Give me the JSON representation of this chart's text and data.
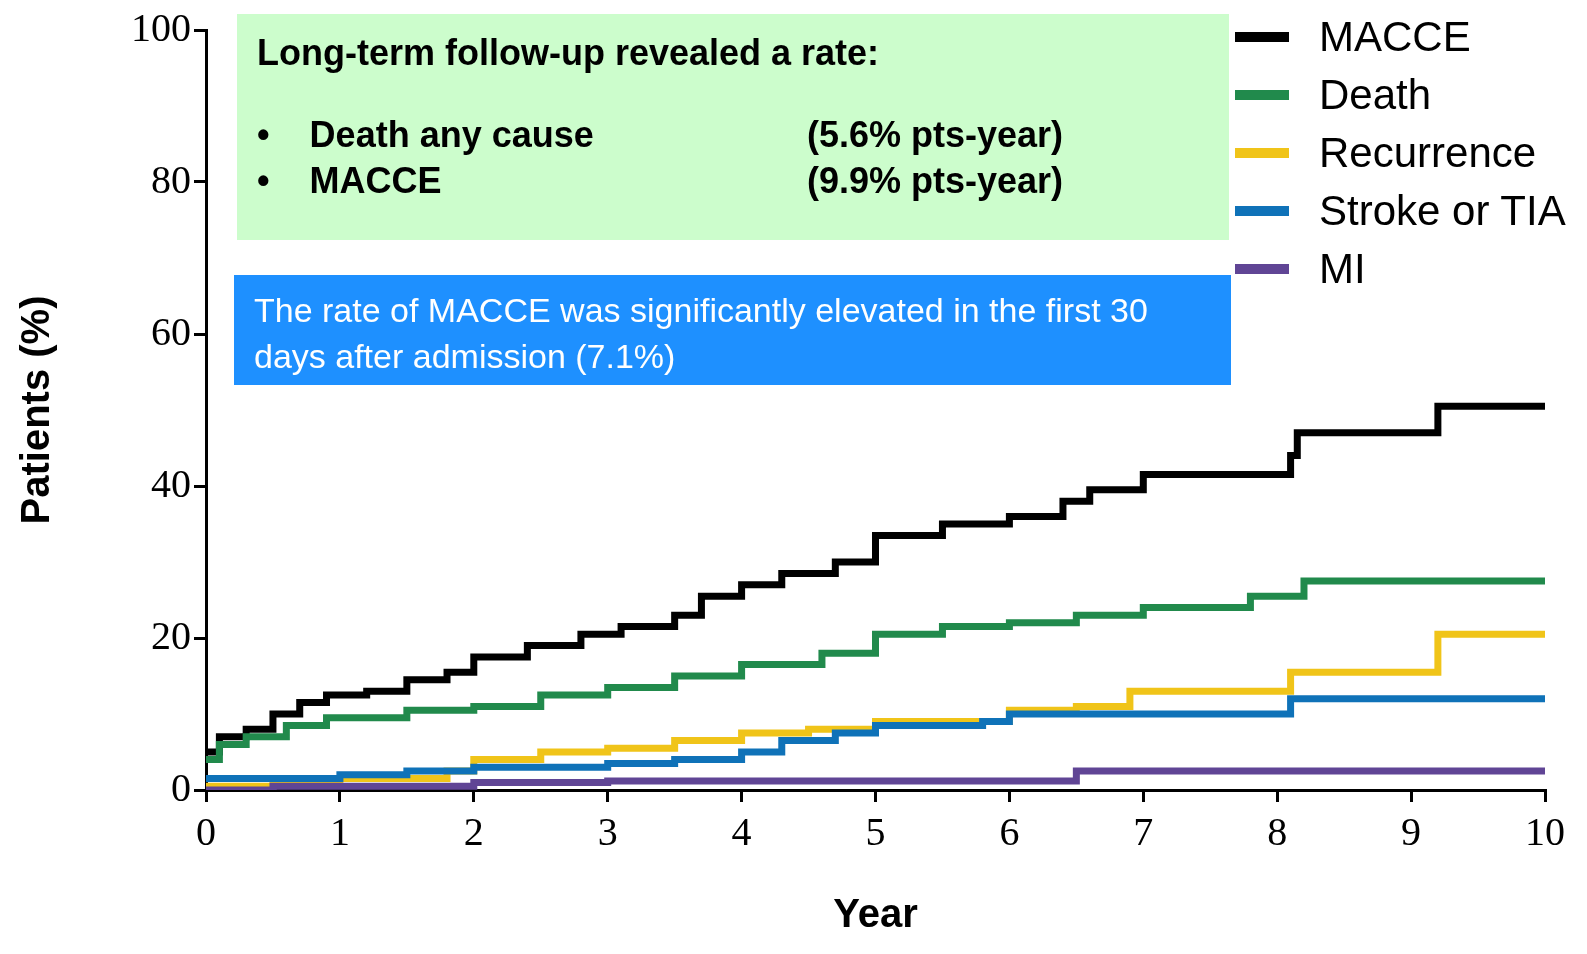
{
  "chart_data": {
    "type": "step",
    "xlabel": "Year",
    "ylabel": "Patients (%)",
    "xlim": [
      0,
      10
    ],
    "xticks": [
      0,
      1,
      2,
      3,
      4,
      5,
      6,
      7,
      8,
      9,
      10
    ],
    "ylim": [
      0,
      100
    ],
    "yticks": [
      0,
      20,
      40,
      60,
      80,
      100
    ],
    "legend": "top right",
    "annotations": [
      "Long-term follow-up revealed a rate:",
      "•    Death any cause",
      "(5.6% pts-year)",
      "•    MACCE",
      "(9.9% pts-year)",
      "The rate of MACCE was significantly elevated in the first 30 days after admission (7.1%)"
    ],
    "series": [
      {
        "name": "MACCE",
        "color": "#000000",
        "x": [
          0,
          0.1,
          0.3,
          0.5,
          0.7,
          0.9,
          1.2,
          1.5,
          1.8,
          2,
          2.4,
          2.8,
          3.1,
          3.5,
          3.7,
          4,
          4.3,
          4.7,
          5,
          5.5,
          6,
          6.4,
          6.6,
          7,
          8.1,
          8.15,
          9.2,
          10
        ],
        "values": [
          5,
          7,
          8,
          10,
          11.5,
          12.5,
          13,
          14.5,
          15.5,
          17.5,
          19,
          20.5,
          21.5,
          23,
          25.5,
          27,
          28.5,
          30,
          33.5,
          35,
          36,
          38,
          39.5,
          41.5,
          44,
          47,
          50.5,
          50.5
        ]
      },
      {
        "name": "Death",
        "color": "#218a4c",
        "x": [
          0,
          0.1,
          0.3,
          0.6,
          0.9,
          1.5,
          2,
          2.5,
          3,
          3.5,
          4,
          4.6,
          5,
          5.5,
          6,
          6.5,
          7,
          7.8,
          8.2,
          10
        ],
        "values": [
          4,
          6,
          7,
          8.5,
          9.5,
          10.5,
          11,
          12.5,
          13.5,
          15,
          16.5,
          18,
          20.5,
          21.5,
          22,
          23,
          24,
          25.5,
          27.5,
          27.5
        ]
      },
      {
        "name": "Recurrence",
        "color": "#f0c419",
        "x": [
          0,
          0.5,
          1,
          1.8,
          2,
          2.5,
          3,
          3.5,
          4,
          4.5,
          5,
          6,
          6.5,
          6.9,
          8.1,
          9.2,
          10
        ],
        "values": [
          0.5,
          1,
          1.5,
          2.5,
          4,
          5,
          5.5,
          6.5,
          7.5,
          8,
          9,
          10.5,
          11,
          13,
          15.5,
          20.5,
          20.5
        ]
      },
      {
        "name": "Stroke or TIA",
        "color": "#0f72b8",
        "x": [
          0,
          1,
          1.5,
          2,
          3,
          3.5,
          4,
          4.3,
          4.7,
          5,
          5.8,
          6,
          8.1,
          10
        ],
        "values": [
          1.5,
          2,
          2.5,
          3,
          3.5,
          4,
          5,
          6.5,
          7.5,
          8.5,
          9,
          10,
          12,
          12
        ]
      },
      {
        "name": "MI",
        "color": "#604595",
        "x": [
          0,
          0.5,
          2,
          3,
          6.5,
          10
        ],
        "values": [
          0,
          0.5,
          1,
          1.2,
          2.5,
          2.5
        ]
      }
    ]
  }
}
